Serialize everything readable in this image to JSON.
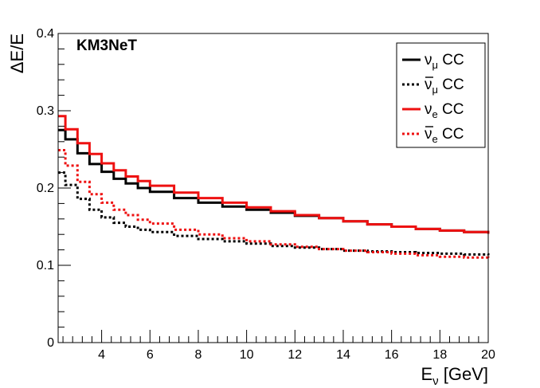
{
  "chart_data": {
    "type": "line",
    "experiment_label": "KM3NeT",
    "xlabel": {
      "main": "E",
      "sub": "ν",
      "unit": " [GeV]"
    },
    "ylabel": "ΔE/E",
    "xlim": [
      2.2,
      20
    ],
    "ylim": [
      0,
      0.4
    ],
    "x_ticks": [
      4,
      6,
      8,
      10,
      12,
      14,
      16,
      18,
      20
    ],
    "y_ticks": [
      0,
      0.1,
      0.2,
      0.3,
      0.4
    ],
    "x_tick_labels": [
      "4",
      "6",
      "8",
      "10",
      "12",
      "14",
      "16",
      "18",
      "20"
    ],
    "y_tick_labels": [
      "0",
      "0.1",
      "0.2",
      "0.3",
      "0.4"
    ],
    "legend_position": "top-right",
    "series": [
      {
        "name": "numu_cc",
        "label": {
          "main": "ν",
          "sub": "μ",
          "rest": " CC",
          "bar": false
        },
        "color": "#000000",
        "style": "solid",
        "points": [
          [
            2.2,
            0.275
          ],
          [
            2.5,
            0.263
          ],
          [
            3.0,
            0.245
          ],
          [
            3.5,
            0.231
          ],
          [
            4.0,
            0.221
          ],
          [
            4.5,
            0.212
          ],
          [
            5.0,
            0.206
          ],
          [
            5.5,
            0.2
          ],
          [
            6.0,
            0.195
          ],
          [
            7.0,
            0.187
          ],
          [
            8.0,
            0.181
          ],
          [
            9.0,
            0.176
          ],
          [
            10.0,
            0.172
          ],
          [
            11.0,
            0.168
          ],
          [
            12.0,
            0.164
          ],
          [
            13.0,
            0.161
          ],
          [
            14.0,
            0.157
          ],
          [
            15.0,
            0.153
          ],
          [
            16.0,
            0.15
          ],
          [
            17.0,
            0.147
          ],
          [
            18.0,
            0.145
          ],
          [
            19.0,
            0.143
          ],
          [
            20.0,
            0.141
          ]
        ]
      },
      {
        "name": "numubar_cc",
        "label": {
          "main": "ν",
          "sub": "μ",
          "rest": " CC",
          "bar": true
        },
        "color": "#000000",
        "style": "dotted",
        "points": [
          [
            2.2,
            0.22
          ],
          [
            2.5,
            0.204
          ],
          [
            3.0,
            0.186
          ],
          [
            3.5,
            0.172
          ],
          [
            4.0,
            0.162
          ],
          [
            4.5,
            0.155
          ],
          [
            5.0,
            0.15
          ],
          [
            5.5,
            0.146
          ],
          [
            6.0,
            0.143
          ],
          [
            7.0,
            0.138
          ],
          [
            8.0,
            0.134
          ],
          [
            9.0,
            0.131
          ],
          [
            10.0,
            0.128
          ],
          [
            11.0,
            0.125
          ],
          [
            12.0,
            0.123
          ],
          [
            13.0,
            0.121
          ],
          [
            14.0,
            0.119
          ],
          [
            15.0,
            0.118
          ],
          [
            16.0,
            0.117
          ],
          [
            17.0,
            0.116
          ],
          [
            18.0,
            0.115
          ],
          [
            19.0,
            0.114
          ],
          [
            20.0,
            0.113
          ]
        ]
      },
      {
        "name": "nue_cc",
        "label": {
          "main": "ν",
          "sub": "e",
          "rest": " CC",
          "bar": false
        },
        "color": "#ee1111",
        "style": "solid",
        "points": [
          [
            2.2,
            0.293
          ],
          [
            2.5,
            0.276
          ],
          [
            3.0,
            0.258
          ],
          [
            3.5,
            0.244
          ],
          [
            4.0,
            0.232
          ],
          [
            4.5,
            0.223
          ],
          [
            5.0,
            0.215
          ],
          [
            5.5,
            0.209
          ],
          [
            6.0,
            0.203
          ],
          [
            7.0,
            0.194
          ],
          [
            8.0,
            0.187
          ],
          [
            9.0,
            0.181
          ],
          [
            10.0,
            0.175
          ],
          [
            11.0,
            0.17
          ],
          [
            12.0,
            0.165
          ],
          [
            13.0,
            0.161
          ],
          [
            14.0,
            0.157
          ],
          [
            15.0,
            0.153
          ],
          [
            16.0,
            0.15
          ],
          [
            17.0,
            0.147
          ],
          [
            18.0,
            0.145
          ],
          [
            19.0,
            0.143
          ],
          [
            20.0,
            0.141
          ]
        ]
      },
      {
        "name": "nuebar_cc",
        "label": {
          "main": "ν",
          "sub": "e",
          "rest": " CC",
          "bar": true
        },
        "color": "#ee1111",
        "style": "dotted",
        "points": [
          [
            2.2,
            0.249
          ],
          [
            2.5,
            0.229
          ],
          [
            3.0,
            0.208
          ],
          [
            3.5,
            0.192
          ],
          [
            4.0,
            0.181
          ],
          [
            4.5,
            0.172
          ],
          [
            5.0,
            0.165
          ],
          [
            5.5,
            0.159
          ],
          [
            6.0,
            0.154
          ],
          [
            7.0,
            0.146
          ],
          [
            8.0,
            0.14
          ],
          [
            9.0,
            0.135
          ],
          [
            10.0,
            0.131
          ],
          [
            11.0,
            0.127
          ],
          [
            12.0,
            0.124
          ],
          [
            13.0,
            0.121
          ],
          [
            14.0,
            0.119
          ],
          [
            15.0,
            0.117
          ],
          [
            16.0,
            0.115
          ],
          [
            17.0,
            0.113
          ],
          [
            18.0,
            0.111
          ],
          [
            19.0,
            0.11
          ],
          [
            20.0,
            0.108
          ]
        ]
      }
    ]
  }
}
